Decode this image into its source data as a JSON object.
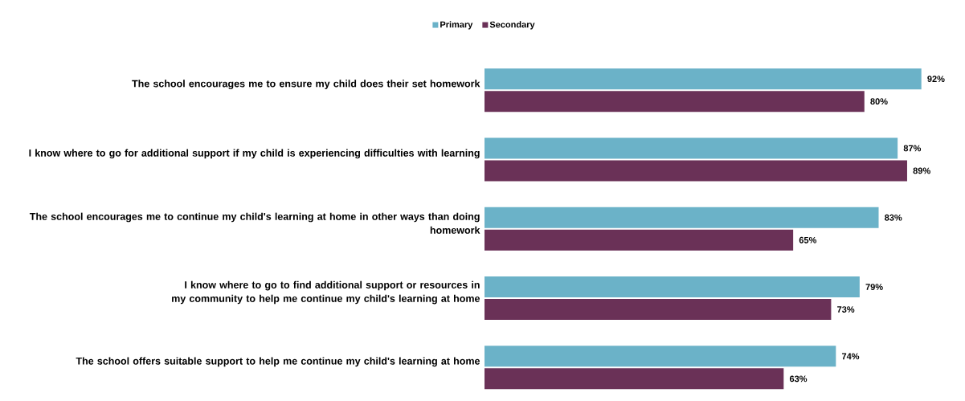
{
  "chart_data": {
    "type": "bar",
    "orientation": "horizontal",
    "legend": "top",
    "categories": [
      "The school encourages me to ensure my child does their set homework",
      "I know where to go for additional support if my child is experiencing  difficulties with learning",
      "The school encourages me to continue my child's learning at home in other ways than doing homework",
      "I know where to go to find additional support or resources in my community to help me continue my child's learning at home",
      "The school offers suitable support to help me continue my child's learning at home"
    ],
    "series": [
      {
        "name": "Primary",
        "color": "#6bb2c8",
        "values": [
          92,
          87,
          83,
          79,
          74
        ],
        "value_labels": [
          "92%",
          "87%",
          "83%",
          "79%",
          "74%"
        ]
      },
      {
        "name": "Secondary",
        "color": "#6a3157",
        "values": [
          80,
          89,
          65,
          73,
          63
        ],
        "value_labels": [
          "80%",
          "89%",
          "65%",
          "73%",
          "63%"
        ]
      }
    ]
  }
}
